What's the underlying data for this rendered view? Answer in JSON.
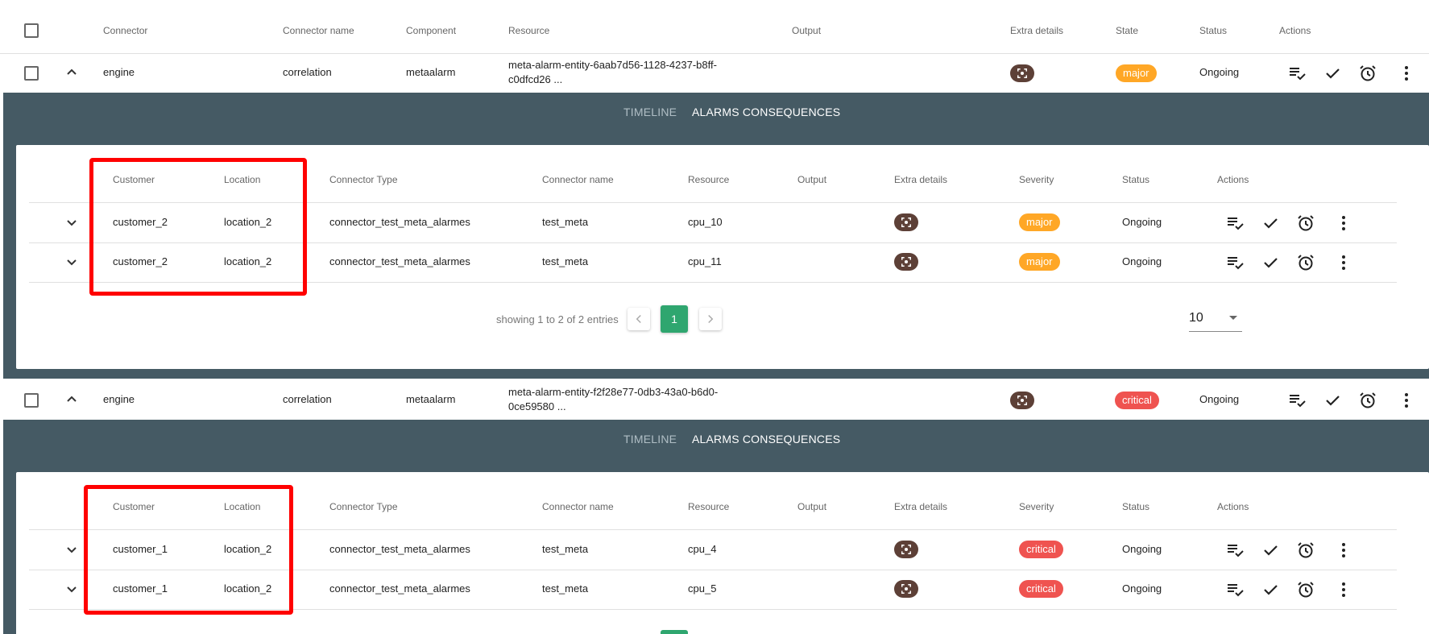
{
  "main_table": {
    "columns": [
      "Connector",
      "Connector name",
      "Component",
      "Resource",
      "Output",
      "Extra details",
      "State",
      "Status",
      "Actions"
    ],
    "rows": [
      {
        "connector": "engine",
        "connector_name": "correlation",
        "component": "metaalarm",
        "resource_line1": "meta-alarm-entity-6aab7d56-1128-4237-b8ff-",
        "resource_line2": "c0dfcd26 ...",
        "output": "",
        "state": "major",
        "status": "Ongoing"
      },
      {
        "connector": "engine",
        "connector_name": "correlation",
        "component": "metaalarm",
        "resource_line1": "meta-alarm-entity-f2f28e77-0db3-43a0-b6d0-",
        "resource_line2": "0ce59580 ...",
        "output": "",
        "state": "critical",
        "status": "Ongoing"
      }
    ]
  },
  "tabs": {
    "timeline": "TIMELINE",
    "consequences": "ALARMS CONSEQUENCES"
  },
  "sub_tables": [
    {
      "columns": [
        "Customer",
        "Location",
        "Connector Type",
        "Connector name",
        "Resource",
        "Output",
        "Extra details",
        "Severity",
        "Status",
        "Actions"
      ],
      "rows": [
        {
          "customer": "customer_2",
          "location": "location_2",
          "connector_type": "connector_test_meta_alarmes",
          "connector_name": "test_meta",
          "resource": "cpu_10",
          "output": "",
          "severity": "major",
          "status": "Ongoing"
        },
        {
          "customer": "customer_2",
          "location": "location_2",
          "connector_type": "connector_test_meta_alarmes",
          "connector_name": "test_meta",
          "resource": "cpu_11",
          "output": "",
          "severity": "major",
          "status": "Ongoing"
        }
      ],
      "pagination": {
        "text": "showing 1 to 2 of 2 entries",
        "current_page": "1",
        "per_page": "10"
      }
    },
    {
      "columns": [
        "Customer",
        "Location",
        "Connector Type",
        "Connector name",
        "Resource",
        "Output",
        "Extra details",
        "Severity",
        "Status",
        "Actions"
      ],
      "rows": [
        {
          "customer": "customer_1",
          "location": "location_2",
          "connector_type": "connector_test_meta_alarmes",
          "connector_name": "test_meta",
          "resource": "cpu_4",
          "output": "",
          "severity": "critical",
          "status": "Ongoing"
        },
        {
          "customer": "customer_1",
          "location": "location_2",
          "connector_type": "connector_test_meta_alarmes",
          "connector_name": "test_meta",
          "resource": "cpu_5",
          "output": "",
          "severity": "critical",
          "status": "Ongoing"
        }
      ]
    }
  ],
  "icons": {
    "checkbox": "checkbox-icon",
    "chevron_up": "chevron-up-icon",
    "chevron_down": "chevron-down-icon",
    "extra_details": "extra-details-icon",
    "declare_ticket": "playlist-check-icon",
    "ack": "check-icon",
    "snooze": "alarm-clock-icon",
    "more": "more-vertical-icon",
    "prev": "chevron-left-icon",
    "next": "chevron-right-icon"
  },
  "colors": {
    "tabbar_bg": "#455a64",
    "major": "#ffa726",
    "critical": "#ef5350",
    "extra_btn": "#5d4037",
    "pagination_active": "#2fa66f",
    "highlight_box": "#ff0000"
  }
}
